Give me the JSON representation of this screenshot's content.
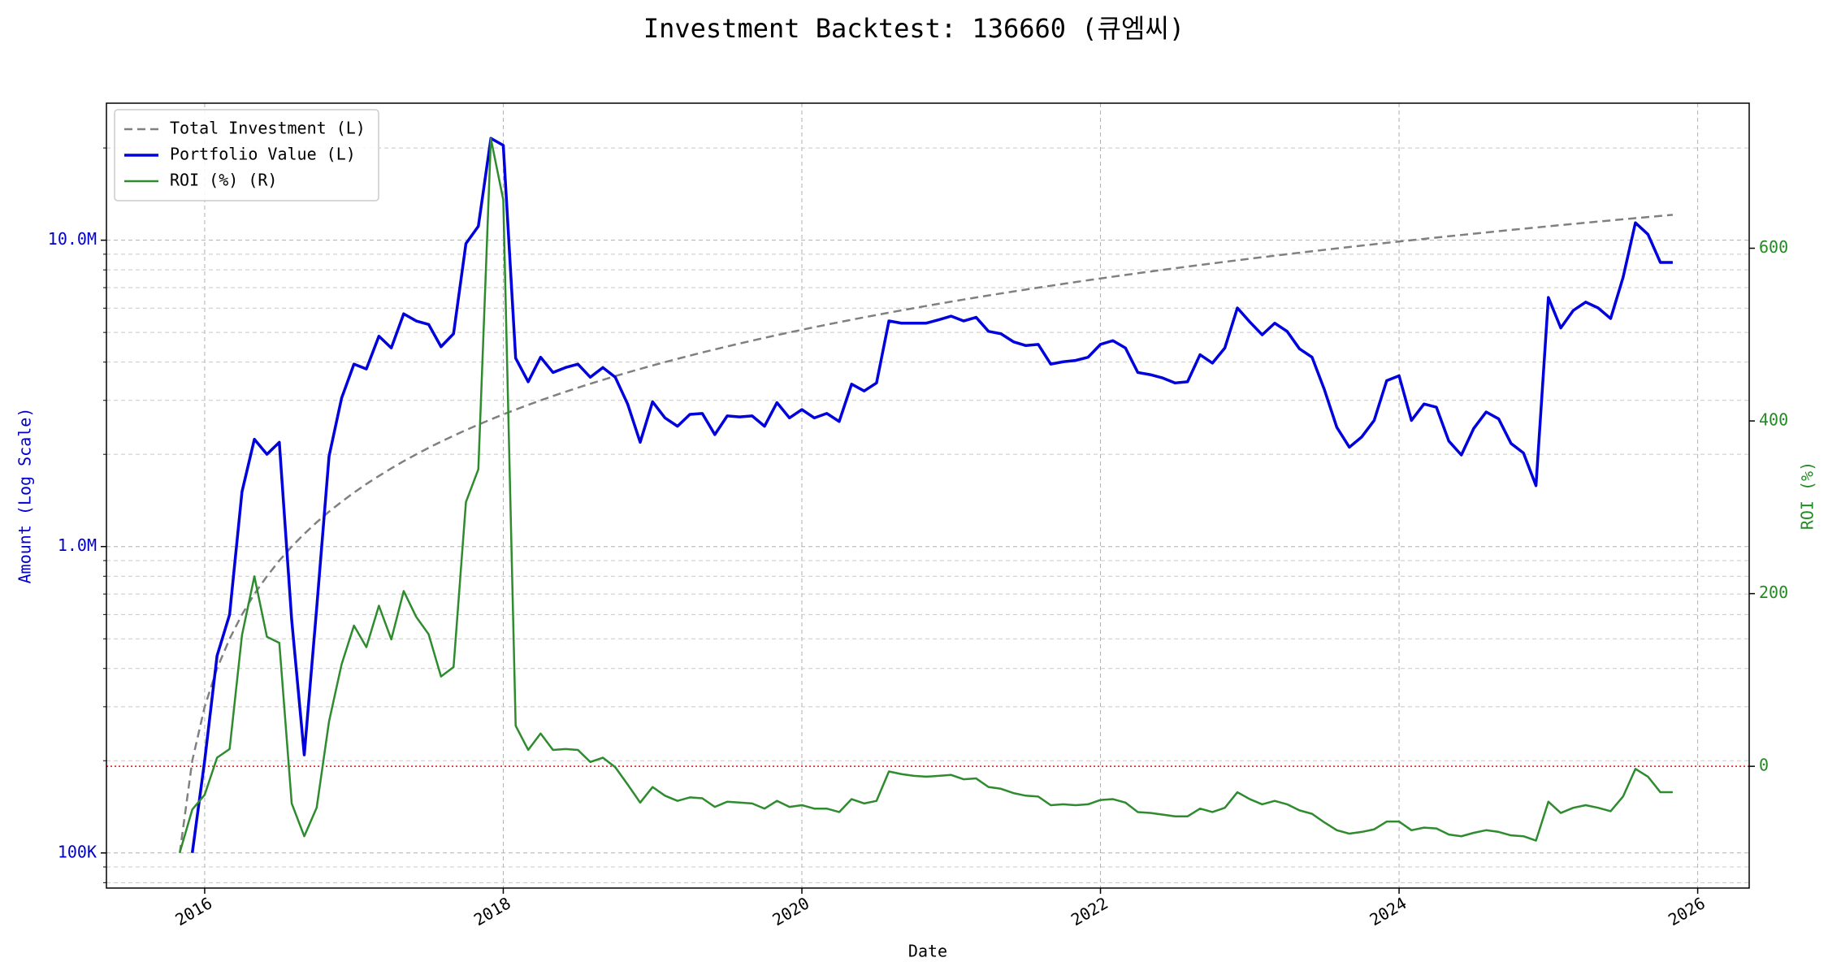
{
  "chart_data": {
    "type": "line",
    "title": "Investment Backtest: 136660 (큐엠씨)",
    "xlabel": "Date",
    "ylabel": "Amount (Log Scale)",
    "ylabel_color": "#0000cc",
    "y2label": "ROI (%)",
    "y2label_color": "#228b22",
    "yscale": "log",
    "grid": true,
    "legend": "upper left",
    "xlim": [
      2015.342,
      2026.345
    ],
    "xticks": [
      2016,
      2018,
      2020,
      2022,
      2024,
      2026
    ],
    "ylim": [
      76800,
      28000000
    ],
    "yticks": [
      {
        "value": 100000,
        "label": "100K"
      },
      {
        "value": 1000000,
        "label": "1.0M"
      },
      {
        "value": 10000000,
        "label": "10.0M"
      }
    ],
    "yminorticks": [
      80000,
      90000,
      200000,
      300000,
      400000,
      500000,
      600000,
      700000,
      800000,
      900000,
      2000000,
      3000000,
      4000000,
      5000000,
      6000000,
      7000000,
      8000000,
      9000000,
      20000000
    ],
    "y2lim": [
      -141,
      768
    ],
    "y2ticks": [
      0,
      200,
      400,
      600
    ],
    "hlines": [
      {
        "value": 0,
        "axis": "y2",
        "color": "#ff0000",
        "style": "dotted"
      }
    ],
    "x": [
      2015.833,
      2015.917,
      2016,
      2016.083,
      2016.167,
      2016.25,
      2016.333,
      2016.417,
      2016.5,
      2016.583,
      2016.667,
      2016.75,
      2016.833,
      2016.917,
      2017,
      2017.083,
      2017.167,
      2017.25,
      2017.333,
      2017.417,
      2017.5,
      2017.583,
      2017.667,
      2017.75,
      2017.833,
      2017.917,
      2018,
      2018.083,
      2018.167,
      2018.25,
      2018.333,
      2018.417,
      2018.5,
      2018.583,
      2018.667,
      2018.75,
      2018.833,
      2018.917,
      2019,
      2019.083,
      2019.167,
      2019.25,
      2019.333,
      2019.417,
      2019.5,
      2019.583,
      2019.667,
      2019.75,
      2019.833,
      2019.917,
      2020,
      2020.083,
      2020.167,
      2020.25,
      2020.333,
      2020.417,
      2020.5,
      2020.583,
      2020.667,
      2020.75,
      2020.833,
      2020.917,
      2021,
      2021.083,
      2021.167,
      2021.25,
      2021.333,
      2021.417,
      2021.5,
      2021.583,
      2021.667,
      2021.75,
      2021.833,
      2021.917,
      2022,
      2022.083,
      2022.167,
      2022.25,
      2022.333,
      2022.417,
      2022.5,
      2022.583,
      2022.667,
      2022.75,
      2022.833,
      2022.917,
      2023,
      2023.083,
      2023.167,
      2023.25,
      2023.333,
      2023.417,
      2023.5,
      2023.583,
      2023.667,
      2023.75,
      2023.833,
      2023.917,
      2024,
      2024.083,
      2024.167,
      2024.25,
      2024.333,
      2024.417,
      2024.5,
      2024.583,
      2024.667,
      2024.75,
      2024.833,
      2024.917,
      2025,
      2025.083,
      2025.167,
      2025.25,
      2025.333,
      2025.417,
      2025.5,
      2025.583,
      2025.667,
      2025.75,
      2025.833
    ],
    "series": [
      {
        "name": "Total Investment (L)",
        "color": "#808080",
        "style": "dashed",
        "linewidth": 2.5,
        "axis": "y",
        "values": [
          100000,
          200000,
          300000,
          400000,
          500000,
          600000,
          700000,
          800000,
          900000,
          1000000,
          1100000,
          1200000,
          1300000,
          1400000,
          1500000,
          1600000,
          1700000,
          1800000,
          1900000,
          2000000,
          2100000,
          2200000,
          2300000,
          2400000,
          2500000,
          2600000,
          2700000,
          2800000,
          2900000,
          3000000,
          3100000,
          3200000,
          3300000,
          3400000,
          3500000,
          3600000,
          3700000,
          3800000,
          3900000,
          4000000,
          4100000,
          4200000,
          4300000,
          4400000,
          4500000,
          4600000,
          4700000,
          4800000,
          4900000,
          5000000,
          5100000,
          5200000,
          5300000,
          5400000,
          5500000,
          5600000,
          5700000,
          5800000,
          5900000,
          6000000,
          6100000,
          6200000,
          6300000,
          6400000,
          6500000,
          6600000,
          6700000,
          6800000,
          6900000,
          7000000,
          7100000,
          7200000,
          7300000,
          7400000,
          7500000,
          7600000,
          7700000,
          7800000,
          7900000,
          8000000,
          8100000,
          8200000,
          8300000,
          8400000,
          8500000,
          8600000,
          8700000,
          8800000,
          8900000,
          9000000,
          9100000,
          9200000,
          9300000,
          9400000,
          9500000,
          9600000,
          9700000,
          9800000,
          9900000,
          10000000,
          10100000,
          10200000,
          10300000,
          10400000,
          10500000,
          10600000,
          10700000,
          10800000,
          10900000,
          11000000,
          11100000,
          11200000,
          11300000,
          11400000,
          11500000,
          11600000,
          11700000,
          11800000,
          11900000,
          12000000,
          12100000
        ]
      },
      {
        "name": "Portfolio Value (L)",
        "color": "#0000dd",
        "style": "solid",
        "linewidth": 3.5,
        "axis": "y",
        "values": [
          null,
          100000,
          200000,
          440000,
          600000,
          1510000,
          2240000,
          2000000,
          2190000,
          575000,
          209000,
          628000,
          1970000,
          3050000,
          3940000,
          3800000,
          4860000,
          4450000,
          5750000,
          5450000,
          5310000,
          4490000,
          4950000,
          9750000,
          11100000,
          21500000,
          20400000,
          4120000,
          3450000,
          4150000,
          3700000,
          3840000,
          3940000,
          3570000,
          3840000,
          3570000,
          2920000,
          2190000,
          2970000,
          2630000,
          2470000,
          2700000,
          2720000,
          2320000,
          2670000,
          2650000,
          2670000,
          2470000,
          2950000,
          2630000,
          2800000,
          2630000,
          2720000,
          2560000,
          3390000,
          3220000,
          3420000,
          5450000,
          5360000,
          5360000,
          5360000,
          5500000,
          5650000,
          5450000,
          5600000,
          5040000,
          4950000,
          4660000,
          4530000,
          4570000,
          3940000,
          4010000,
          4050000,
          4150000,
          4570000,
          4700000,
          4450000,
          3700000,
          3640000,
          3550000,
          3420000,
          3450000,
          4230000,
          3970000,
          4450000,
          6010000,
          5410000,
          4910000,
          5360000,
          5040000,
          4420000,
          4150000,
          3250000,
          2450000,
          2110000,
          2280000,
          2580000,
          3480000,
          3610000,
          2580000,
          2920000,
          2850000,
          2210000,
          1990000,
          2430000,
          2750000,
          2610000,
          2170000,
          2020000,
          1580000,
          6500000,
          5170000,
          5900000,
          6280000,
          6010000,
          5550000,
          7550000,
          11400000,
          10450000,
          8460000,
          8460000
        ]
      },
      {
        "name": "ROI (%) (R)",
        "color": "#2e8b2e",
        "style": "solid",
        "linewidth": 2.5,
        "axis": "y2",
        "values": [
          -100,
          -50,
          -33,
          10,
          20,
          152,
          220,
          150,
          143,
          -43,
          -81,
          -48,
          52,
          118,
          163,
          138,
          186,
          147,
          203,
          173,
          153,
          104,
          115,
          306,
          344,
          727,
          656,
          47,
          19,
          38,
          19,
          20,
          19,
          5,
          10,
          -1,
          -21,
          -42,
          -24,
          -34,
          -40,
          -36,
          -37,
          -47,
          -41,
          -42,
          -43,
          -49,
          -40,
          -47,
          -45,
          -49,
          -49,
          -53,
          -38,
          -43,
          -40,
          -6,
          -9,
          -11,
          -12,
          -11,
          -10,
          -15,
          -14,
          -24,
          -26,
          -31,
          -34,
          -35,
          -45,
          -44,
          -45,
          -44,
          -39,
          -38,
          -42,
          -53,
          -54,
          -56,
          -58,
          -58,
          -49,
          -53,
          -48,
          -30,
          -38,
          -44,
          -40,
          -44,
          -51,
          -55,
          -65,
          -74,
          -78,
          -76,
          -73,
          -64,
          -64,
          -74,
          -71,
          -72,
          -79,
          -81,
          -77,
          -74,
          -76,
          -80,
          -81,
          -86,
          -41,
          -54,
          -48,
          -45,
          -48,
          -52,
          -35,
          -3,
          -12,
          -30,
          -30
        ]
      }
    ]
  }
}
